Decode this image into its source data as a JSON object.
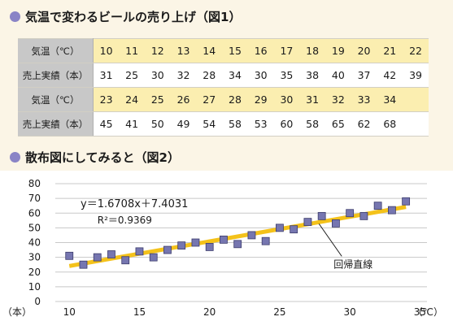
{
  "section1": {
    "title": "気温で変わるビールの売り上げ（図1）"
  },
  "table": {
    "rows": [
      {
        "label": "気温（℃）",
        "kind": "temp",
        "values": [
          "10",
          "11",
          "12",
          "13",
          "14",
          "15",
          "16",
          "17",
          "18",
          "19",
          "20",
          "21",
          "22"
        ]
      },
      {
        "label": "売上実績（本）",
        "kind": "sales",
        "values": [
          "31",
          "25",
          "30",
          "32",
          "28",
          "34",
          "30",
          "35",
          "38",
          "40",
          "37",
          "42",
          "39"
        ]
      },
      {
        "label": "気温（℃）",
        "kind": "temp",
        "values": [
          "23",
          "24",
          "25",
          "26",
          "27",
          "28",
          "29",
          "30",
          "31",
          "32",
          "33",
          "34",
          ""
        ]
      },
      {
        "label": "売上実績（本）",
        "kind": "sales",
        "values": [
          "45",
          "41",
          "50",
          "49",
          "54",
          "58",
          "53",
          "60",
          "58",
          "65",
          "62",
          "68",
          ""
        ]
      }
    ]
  },
  "section2": {
    "title": "散布図にしてみると（図2）"
  },
  "chart_data": {
    "type": "scatter",
    "x": [
      10,
      11,
      12,
      13,
      14,
      15,
      16,
      17,
      18,
      19,
      20,
      21,
      22,
      23,
      24,
      25,
      26,
      27,
      28,
      29,
      30,
      31,
      32,
      33,
      34
    ],
    "y": [
      31,
      25,
      30,
      32,
      28,
      34,
      30,
      35,
      38,
      40,
      37,
      42,
      39,
      45,
      41,
      50,
      49,
      54,
      58,
      53,
      60,
      58,
      65,
      62,
      68
    ],
    "xlim": [
      9,
      35.5
    ],
    "ylim": [
      0,
      80
    ],
    "xticks": [
      10,
      15,
      20,
      25,
      30,
      35
    ],
    "yticks": [
      0,
      10,
      20,
      30,
      40,
      50,
      60,
      70,
      80
    ],
    "x_unit": "（℃）",
    "y_unit": "（本）",
    "trendline": {
      "slope": 1.6708,
      "intercept": 7.4031,
      "x_range": [
        10,
        34
      ]
    },
    "equation": "y＝1.6708x＋7.4031",
    "r_squared": "R²＝0.9369",
    "trendline_label": "回帰直線",
    "grid": "horizontal",
    "colors": {
      "marker": "#7676b0",
      "marker_edge": "#3c3c6c",
      "trendline": "#f4c21a",
      "grid": "#c8c8c8"
    }
  }
}
